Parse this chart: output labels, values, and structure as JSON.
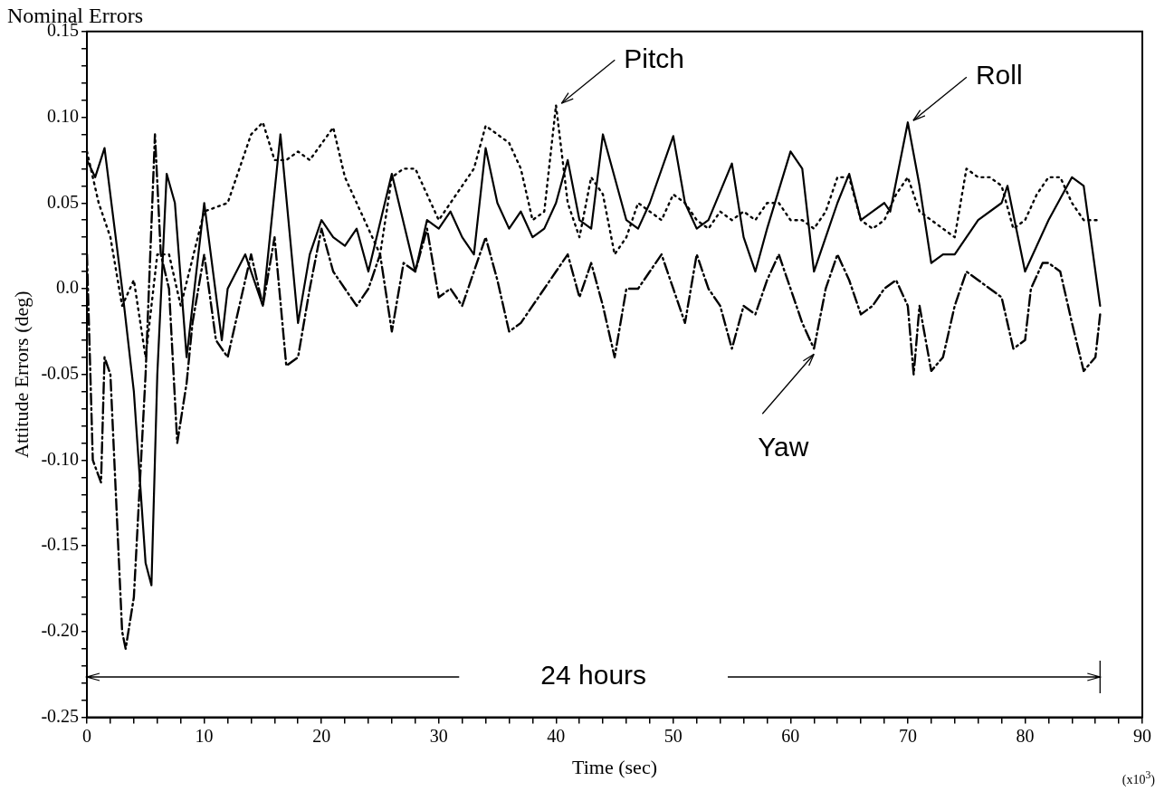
{
  "chart_data": {
    "type": "line",
    "title": "Nominal Errors",
    "xlabel": "Time (sec)",
    "ylabel": "Attitude Errors (deg)",
    "xlim": [
      0,
      90
    ],
    "ylim": [
      -0.25,
      0.15
    ],
    "xticks": [
      0,
      {
        "value": 2,
        "label": null
      },
      {
        "value": 4,
        "label": null
      },
      {
        "value": 6,
        "label": null
      },
      {
        "value": 8,
        "label": null
      },
      10,
      {
        "value": 12,
        "label": null
      },
      {
        "value": 14,
        "label": null
      },
      {
        "value": 16,
        "label": null
      },
      {
        "value": 18,
        "label": null
      },
      20,
      {
        "value": 22,
        "label": null
      },
      {
        "value": 24,
        "label": null
      },
      {
        "value": 26,
        "label": null
      },
      {
        "value": 28,
        "label": null
      },
      30,
      {
        "value": 32,
        "label": null
      },
      {
        "value": 34,
        "label": null
      },
      {
        "value": 36,
        "label": null
      },
      {
        "value": 38,
        "label": null
      },
      40,
      {
        "value": 42,
        "label": null
      },
      {
        "value": 44,
        "label": null
      },
      {
        "value": 46,
        "label": null
      },
      {
        "value": 48,
        "label": null
      },
      50,
      {
        "value": 52,
        "label": null
      },
      {
        "value": 54,
        "label": null
      },
      {
        "value": 56,
        "label": null
      },
      {
        "value": 58,
        "label": null
      },
      60,
      {
        "value": 62,
        "label": null
      },
      {
        "value": 64,
        "label": null
      },
      {
        "value": 66,
        "label": null
      },
      {
        "value": 68,
        "label": null
      },
      70,
      {
        "value": 72,
        "label": null
      },
      {
        "value": 74,
        "label": null
      },
      {
        "value": 76,
        "label": null
      },
      {
        "value": 78,
        "label": null
      },
      80,
      {
        "value": 82,
        "label": null
      },
      {
        "value": 84,
        "label": null
      },
      {
        "value": 86,
        "label": null
      },
      {
        "value": 88,
        "label": null
      },
      90
    ],
    "yticks": [
      -0.25,
      {
        "value": -0.24,
        "label": null
      },
      {
        "value": -0.23,
        "label": null
      },
      {
        "value": -0.22,
        "label": null
      },
      {
        "value": -0.21,
        "label": null
      },
      {
        "value": -0.2,
        "label": "-0.20"
      },
      {
        "value": -0.19,
        "label": null
      },
      {
        "value": -0.18,
        "label": null
      },
      {
        "value": -0.17,
        "label": null
      },
      {
        "value": -0.16,
        "label": null
      },
      -0.15,
      {
        "value": -0.14,
        "label": null
      },
      {
        "value": -0.13,
        "label": null
      },
      {
        "value": -0.12,
        "label": null
      },
      {
        "value": -0.11,
        "label": null
      },
      {
        "value": -0.1,
        "label": "-0.10"
      },
      {
        "value": -0.09,
        "label": null
      },
      {
        "value": -0.08,
        "label": null
      },
      {
        "value": -0.07,
        "label": null
      },
      {
        "value": -0.06,
        "label": null
      },
      -0.05,
      {
        "value": -0.04,
        "label": null
      },
      {
        "value": -0.03,
        "label": null
      },
      {
        "value": -0.02,
        "label": null
      },
      {
        "value": -0.01,
        "label": null
      },
      {
        "value": 0,
        "label": "0.0"
      },
      {
        "value": 0.01,
        "label": null
      },
      {
        "value": 0.02,
        "label": null
      },
      {
        "value": 0.03,
        "label": null
      },
      {
        "value": 0.04,
        "label": null
      },
      0.05,
      {
        "value": 0.06,
        "label": null
      },
      {
        "value": 0.07,
        "label": null
      },
      {
        "value": 0.08,
        "label": null
      },
      {
        "value": 0.09,
        "label": null
      },
      {
        "value": 0.1,
        "label": "0.10"
      },
      {
        "value": 0.11,
        "label": null
      },
      {
        "value": 0.12,
        "label": null
      },
      {
        "value": 0.13,
        "label": null
      },
      {
        "value": 0.14,
        "label": null
      },
      0.15
    ],
    "grid": false,
    "legend": false,
    "marker": "none",
    "series": [
      {
        "color": "#000000",
        "line_style": "solid",
        "x": [
          0,
          0.7,
          1.5,
          3,
          4,
          5,
          5.5,
          6,
          6.8,
          7.5,
          8.5,
          10,
          11.5,
          12,
          13.5,
          15,
          16.5,
          18,
          19,
          20,
          21,
          22,
          23,
          24,
          26,
          28,
          29,
          30,
          31,
          32,
          33,
          34,
          35,
          36,
          37,
          38,
          39,
          40,
          41,
          42,
          43,
          44,
          46,
          47,
          48,
          50,
          51,
          52,
          53,
          55,
          56,
          57,
          58,
          60,
          61,
          62,
          63,
          64,
          65,
          66,
          67,
          68,
          68.5,
          70,
          71,
          72,
          73,
          74,
          75,
          76,
          78,
          78.5,
          80,
          82,
          84,
          85,
          86.4
        ],
        "values": [
          0.075,
          0.065,
          0.082,
          0.0,
          -0.06,
          -0.16,
          -0.173,
          -0.05,
          0.067,
          0.05,
          -0.04,
          0.05,
          -0.03,
          0.0,
          0.02,
          -0.01,
          0.09,
          -0.02,
          0.02,
          0.04,
          0.03,
          0.025,
          0.035,
          0.01,
          0.067,
          0.01,
          0.04,
          0.035,
          0.045,
          0.03,
          0.02,
          0.082,
          0.05,
          0.035,
          0.045,
          0.03,
          0.035,
          0.05,
          0.075,
          0.04,
          0.035,
          0.09,
          0.04,
          0.035,
          0.05,
          0.089,
          0.05,
          0.035,
          0.04,
          0.073,
          0.03,
          0.01,
          0.035,
          0.08,
          0.07,
          0.01,
          0.03,
          0.05,
          0.067,
          0.04,
          0.045,
          0.05,
          0.045,
          0.097,
          0.06,
          0.015,
          0.02,
          0.02,
          0.03,
          0.04,
          0.05,
          0.06,
          0.01,
          0.04,
          0.065,
          0.06,
          -0.01
        ]
      },
      {
        "color": "#000000",
        "line_style": "dotted",
        "x": [
          0,
          1,
          2,
          3,
          4,
          5,
          6,
          7,
          8,
          10,
          12,
          14,
          15,
          16,
          17,
          18,
          19,
          21,
          22,
          23,
          25,
          26,
          27,
          28,
          30,
          32,
          33,
          34,
          35,
          36,
          37,
          38,
          39,
          40,
          41,
          42,
          43,
          44,
          45,
          46,
          47,
          48,
          49,
          50,
          51,
          52,
          53,
          54,
          55,
          56,
          57,
          58,
          59,
          60,
          61,
          62,
          63,
          64,
          65,
          66,
          67,
          68,
          69,
          70,
          71,
          72,
          73,
          74,
          75,
          76,
          77,
          78,
          79,
          80,
          81,
          82,
          83,
          84,
          85,
          86.4
        ],
        "values": [
          0.08,
          0.05,
          0.03,
          -0.01,
          0.005,
          -0.04,
          0.02,
          0.02,
          -0.01,
          0.045,
          0.05,
          0.09,
          0.097,
          0.075,
          0.075,
          0.08,
          0.075,
          0.094,
          0.065,
          0.05,
          0.02,
          0.065,
          0.07,
          0.07,
          0.04,
          0.06,
          0.07,
          0.095,
          0.09,
          0.085,
          0.07,
          0.04,
          0.045,
          0.107,
          0.05,
          0.03,
          0.065,
          0.055,
          0.02,
          0.03,
          0.05,
          0.045,
          0.04,
          0.055,
          0.05,
          0.04,
          0.035,
          0.045,
          0.04,
          0.045,
          0.04,
          0.05,
          0.05,
          0.04,
          0.04,
          0.035,
          0.045,
          0.065,
          0.065,
          0.04,
          0.035,
          0.04,
          0.055,
          0.065,
          0.045,
          0.04,
          0.035,
          0.03,
          0.07,
          0.065,
          0.065,
          0.06,
          0.035,
          0.04,
          0.055,
          0.065,
          0.065,
          0.05,
          0.04,
          0.04
        ]
      },
      {
        "color": "#000000",
        "line_style": "dashed",
        "x": [
          0,
          0.5,
          1.2,
          1.5,
          2,
          3,
          3.3,
          4,
          5,
          5.8,
          6.3,
          7,
          7.7,
          8.5,
          9,
          10,
          11,
          12,
          13,
          14,
          15,
          16,
          17,
          18,
          19,
          20,
          21,
          22,
          23,
          24,
          25,
          26,
          27,
          28,
          29,
          30,
          31,
          32,
          33,
          34,
          35,
          36,
          37,
          38,
          39,
          40,
          41,
          42,
          43,
          44,
          45,
          46,
          47,
          48,
          49,
          50,
          51,
          52,
          53,
          54,
          55,
          56,
          57,
          58,
          59,
          60,
          61,
          62,
          63,
          64,
          65,
          66,
          67,
          68,
          69,
          70,
          70.5,
          71,
          72,
          73,
          74,
          75,
          76,
          77,
          78,
          79,
          80,
          80.5,
          81.5,
          82,
          83,
          84,
          85,
          86,
          86.4
        ],
        "values": [
          0.02,
          -0.1,
          -0.113,
          -0.04,
          -0.05,
          -0.2,
          -0.21,
          -0.18,
          -0.05,
          0.09,
          0.02,
          0.0,
          -0.09,
          -0.055,
          -0.02,
          0.02,
          -0.03,
          -0.04,
          -0.01,
          0.02,
          -0.01,
          0.03,
          -0.045,
          -0.04,
          0.0,
          0.035,
          0.01,
          0.0,
          -0.01,
          0.0,
          0.02,
          -0.025,
          0.015,
          0.01,
          0.035,
          -0.005,
          0.0,
          -0.01,
          0.01,
          0.03,
          0.005,
          -0.025,
          -0.02,
          -0.01,
          0.0,
          0.01,
          0.02,
          -0.005,
          0.015,
          -0.01,
          -0.04,
          0.0,
          0.0,
          0.01,
          0.02,
          0.0,
          -0.02,
          0.02,
          0.0,
          -0.01,
          -0.035,
          -0.01,
          -0.015,
          0.005,
          0.02,
          0.0,
          -0.02,
          -0.035,
          0.0,
          0.02,
          0.005,
          -0.015,
          -0.01,
          0.0,
          0.005,
          -0.01,
          -0.05,
          -0.01,
          -0.048,
          -0.04,
          -0.01,
          0.01,
          0.005,
          0.0,
          -0.005,
          -0.035,
          -0.03,
          0.0,
          0.015,
          0.015,
          0.01,
          -0.02,
          -0.048,
          -0.04,
          -0.015
        ]
      }
    ],
    "annotations": [
      {
        "text": "Pitch",
        "x": 40,
        "y": 0.107
      },
      {
        "text": "Roll",
        "x": 70,
        "y": 0.097
      },
      {
        "text": "Yaw",
        "x": 62,
        "y": -0.035
      },
      "24 hours",
      "(x10$^{3}$)"
    ]
  }
}
